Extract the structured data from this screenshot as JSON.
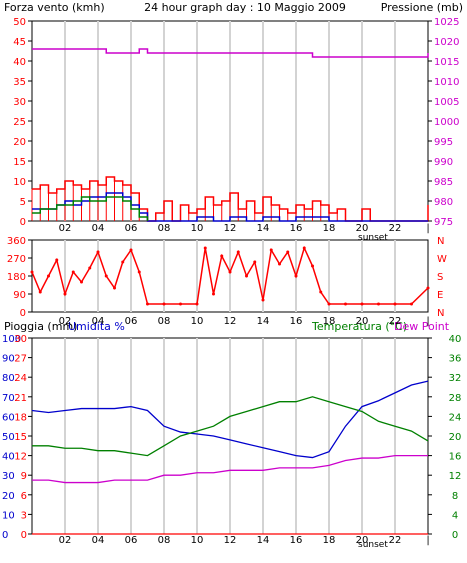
{
  "header": {
    "left_label": "Forza vento (kmh)",
    "title": "24 hour graph day : 10 Maggio 2009",
    "right_label": "Pressione (mb)"
  },
  "panel3_labels": {
    "rain": "Pioggia (mm)",
    "humidity": "Umidita %",
    "temperature": "Temperatura (°C)",
    "dewpoint": "Dew Point"
  },
  "sunset_label": "sunset",
  "colors": {
    "wind": "#ff0000",
    "avg_wind": "#0000cc",
    "wind_green": "#008000",
    "pressure": "#cc00cc",
    "dir": "#ff0000",
    "humidity": "#0000cc",
    "temperature": "#008000",
    "dewpoint": "#cc00cc",
    "rain": "#ff0000",
    "grid": "#d3d3d3"
  },
  "chart_data": [
    {
      "type": "bar",
      "id": "wind-pressure",
      "x_ticks": [
        "02",
        "04",
        "06",
        "08",
        "10",
        "12",
        "14",
        "16",
        "18",
        "20",
        "22",
        "|"
      ],
      "xlim": [
        0,
        24
      ],
      "left_axis": {
        "ticks": [
          0,
          5,
          10,
          15,
          20,
          25,
          30,
          35,
          40,
          45,
          50
        ],
        "ylim": [
          0,
          50
        ]
      },
      "right_axis": {
        "ticks": [
          975,
          980,
          985,
          990,
          995,
          1000,
          1005,
          1010,
          1015,
          1020,
          1025
        ],
        "ylim": [
          975,
          1025
        ]
      },
      "series": [
        {
          "role": "gust",
          "color": "red",
          "x": [
            0,
            0.5,
            1,
            1.5,
            2,
            2.5,
            3,
            3.5,
            4,
            4.5,
            5,
            5.5,
            6,
            6.5,
            7,
            7.5,
            8,
            8.5,
            9,
            9.5,
            10,
            10.5,
            11,
            11.5,
            12,
            12.5,
            13,
            13.5,
            14,
            14.5,
            15,
            15.5,
            16,
            16.5,
            17,
            17.5,
            18,
            18.5,
            19,
            19.5,
            20,
            20.5,
            21,
            21.5,
            22,
            22.5,
            23,
            23.5,
            24
          ],
          "values": [
            8,
            9,
            7,
            8,
            10,
            9,
            8,
            10,
            9,
            11,
            10,
            9,
            7,
            3,
            0,
            2,
            5,
            0,
            4,
            2,
            3,
            6,
            4,
            5,
            7,
            3,
            5,
            2,
            6,
            4,
            3,
            2,
            4,
            3,
            5,
            4,
            2,
            3,
            0,
            0,
            3,
            0,
            0,
            0,
            0,
            0,
            0,
            0,
            4
          ]
        },
        {
          "role": "average",
          "color": "blue",
          "x": [
            0,
            0.5,
            1,
            1.5,
            2,
            2.5,
            3,
            3.5,
            4,
            4.5,
            5,
            5.5,
            6,
            6.5,
            7,
            8,
            9,
            10,
            11,
            12,
            13,
            14,
            15,
            16,
            17,
            18,
            19,
            20,
            21,
            22,
            23,
            24
          ],
          "values": [
            3,
            3,
            3,
            4,
            5,
            4,
            5,
            6,
            6,
            7,
            7,
            6,
            4,
            2,
            0,
            0,
            0,
            1,
            0,
            1,
            0,
            1,
            0,
            1,
            1,
            0,
            0,
            0,
            0,
            0,
            0,
            0
          ]
        },
        {
          "role": "green",
          "color": "green",
          "x": [
            0,
            0.5,
            1,
            1.5,
            2,
            2.5,
            3,
            3.5,
            4,
            4.5,
            5,
            5.5,
            6,
            6.5,
            7
          ],
          "values": [
            2,
            3,
            3,
            4,
            4,
            5,
            6,
            5,
            5,
            6,
            6,
            5,
            3,
            1,
            0
          ]
        },
        {
          "role": "pressure",
          "color": "magenta",
          "x": [
            0,
            4,
            4.5,
            5,
            6.5,
            7,
            14,
            14.5,
            17,
            17.5,
            22,
            22.5,
            24
          ],
          "values": [
            1018,
            1018,
            1017,
            1017,
            1018,
            1017,
            1017,
            1017,
            1016,
            1016,
            1016,
            1016,
            1017
          ]
        }
      ]
    },
    {
      "type": "scatter",
      "id": "wind-direction",
      "x_ticks": [
        "02",
        "04",
        "06",
        "08",
        "10",
        "12",
        "14",
        "16",
        "18",
        "20",
        "22",
        "|"
      ],
      "xlim": [
        0,
        24
      ],
      "y_ticks": [
        0,
        90,
        180,
        270,
        360
      ],
      "ylim": [
        0,
        360
      ],
      "cardinal_labels": [
        "N",
        "W",
        "S",
        "E",
        "N"
      ],
      "series": [
        {
          "color": "red",
          "x": [
            0,
            0.5,
            1,
            1.5,
            2,
            2.5,
            3,
            3.5,
            4,
            4.5,
            5,
            5.5,
            6,
            6.5,
            7,
            8,
            9,
            10,
            10.5,
            11,
            11.5,
            12,
            12.5,
            13,
            13.5,
            14,
            14.5,
            15,
            15.5,
            16,
            16.5,
            17,
            17.5,
            18,
            19,
            20,
            21,
            22,
            23,
            24
          ],
          "values": [
            200,
            100,
            180,
            260,
            90,
            200,
            150,
            220,
            300,
            180,
            120,
            250,
            310,
            200,
            40,
            40,
            40,
            40,
            320,
            90,
            280,
            200,
            300,
            180,
            250,
            60,
            310,
            240,
            300,
            180,
            320,
            230,
            100,
            40,
            40,
            40,
            40,
            40,
            40,
            120
          ]
        }
      ]
    },
    {
      "type": "line",
      "id": "rain-humidity-temp",
      "x_ticks": [
        "02",
        "04",
        "06",
        "08",
        "10",
        "12",
        "14",
        "16",
        "18",
        "20",
        "22",
        "|"
      ],
      "xlim": [
        0,
        24
      ],
      "left_axes": [
        {
          "name": "Pioggia (mm)",
          "ticks": [
            0,
            3,
            6,
            9,
            12,
            15,
            18,
            21,
            24,
            27,
            30
          ],
          "ylim": [
            0,
            30
          ]
        },
        {
          "name": "Umidita %",
          "ticks": [
            0,
            10,
            20,
            30,
            40,
            50,
            60,
            70,
            80,
            90,
            100
          ],
          "ylim": [
            0,
            100
          ]
        }
      ],
      "right_axes": [
        {
          "ticks": [
            0,
            4,
            8,
            12,
            16,
            20,
            24,
            28,
            32,
            36,
            40
          ],
          "ylim": [
            0,
            40
          ]
        }
      ],
      "series": [
        {
          "name": "Umidita %",
          "color": "blue",
          "x": [
            0,
            1,
            2,
            3,
            4,
            5,
            6,
            7,
            8,
            9,
            10,
            11,
            12,
            13,
            14,
            15,
            16,
            17,
            18,
            19,
            20,
            21,
            22,
            23,
            24
          ],
          "values": [
            63,
            62,
            63,
            64,
            64,
            64,
            65,
            63,
            55,
            52,
            51,
            50,
            48,
            46,
            44,
            42,
            40,
            39,
            42,
            55,
            65,
            68,
            72,
            76,
            78
          ]
        },
        {
          "name": "Temperatura (°C)",
          "color": "green",
          "x": [
            0,
            1,
            2,
            3,
            4,
            5,
            6,
            7,
            8,
            9,
            10,
            11,
            12,
            13,
            14,
            15,
            16,
            17,
            18,
            19,
            20,
            21,
            22,
            23,
            24
          ],
          "values": [
            18,
            18,
            17.5,
            17.5,
            17,
            17,
            16.5,
            16,
            18,
            20,
            21,
            22,
            24,
            25,
            26,
            27,
            27,
            28,
            27,
            26,
            25,
            23,
            22,
            21,
            19
          ]
        },
        {
          "name": "Dew Point",
          "color": "magenta",
          "x": [
            0,
            1,
            2,
            3,
            4,
            5,
            6,
            7,
            8,
            9,
            10,
            11,
            12,
            13,
            14,
            15,
            16,
            17,
            18,
            19,
            20,
            21,
            22,
            23,
            24
          ],
          "values": [
            11,
            11,
            10.5,
            10.5,
            10.5,
            11,
            11,
            11,
            12,
            12,
            12.5,
            12.5,
            13,
            13,
            13,
            13.5,
            13.5,
            13.5,
            14,
            15,
            15.5,
            15.5,
            16,
            16,
            16
          ]
        },
        {
          "name": "Pioggia (mm)",
          "color": "red",
          "x": [
            0,
            24
          ],
          "values": [
            0,
            0
          ]
        }
      ]
    }
  ]
}
